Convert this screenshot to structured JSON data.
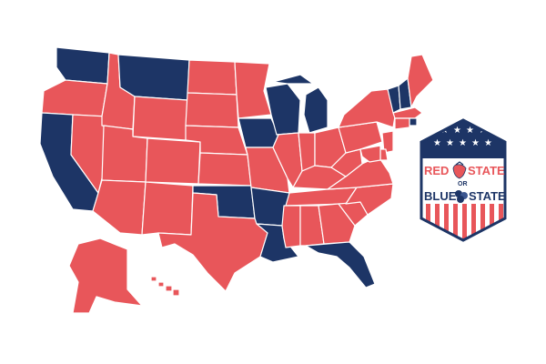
{
  "colors": {
    "red": "#e8565a",
    "blue": "#1d3566",
    "background": "#ffffff"
  },
  "states": [
    {
      "name": "Washington",
      "party": "blue"
    },
    {
      "name": "Oregon",
      "party": "red"
    },
    {
      "name": "California",
      "party": "blue"
    },
    {
      "name": "Nevada",
      "party": "red"
    },
    {
      "name": "Idaho",
      "party": "red"
    },
    {
      "name": "Montana",
      "party": "blue"
    },
    {
      "name": "Wyoming",
      "party": "red"
    },
    {
      "name": "Utah",
      "party": "red"
    },
    {
      "name": "Arizona",
      "party": "red"
    },
    {
      "name": "Colorado",
      "party": "red"
    },
    {
      "name": "New Mexico",
      "party": "red"
    },
    {
      "name": "North Dakota",
      "party": "red"
    },
    {
      "name": "South Dakota",
      "party": "red"
    },
    {
      "name": "Nebraska",
      "party": "red"
    },
    {
      "name": "Kansas",
      "party": "red"
    },
    {
      "name": "Oklahoma",
      "party": "blue"
    },
    {
      "name": "Texas",
      "party": "red"
    },
    {
      "name": "Minnesota",
      "party": "red"
    },
    {
      "name": "Iowa",
      "party": "blue"
    },
    {
      "name": "Missouri",
      "party": "red"
    },
    {
      "name": "Arkansas",
      "party": "blue"
    },
    {
      "name": "Louisiana",
      "party": "blue"
    },
    {
      "name": "Wisconsin",
      "party": "blue"
    },
    {
      "name": "Michigan",
      "party": "blue"
    },
    {
      "name": "Illinois",
      "party": "red"
    },
    {
      "name": "Indiana",
      "party": "red"
    },
    {
      "name": "Ohio",
      "party": "red"
    },
    {
      "name": "Kentucky",
      "party": "red"
    },
    {
      "name": "Tennessee",
      "party": "red"
    },
    {
      "name": "Mississippi",
      "party": "red"
    },
    {
      "name": "Alabama",
      "party": "red"
    },
    {
      "name": "Georgia",
      "party": "red"
    },
    {
      "name": "Florida",
      "party": "blue"
    },
    {
      "name": "South Carolina",
      "party": "red"
    },
    {
      "name": "North Carolina",
      "party": "red"
    },
    {
      "name": "Virginia",
      "party": "red"
    },
    {
      "name": "West Virginia",
      "party": "red"
    },
    {
      "name": "Pennsylvania",
      "party": "red"
    },
    {
      "name": "New York",
      "party": "red"
    },
    {
      "name": "Vermont",
      "party": "blue"
    },
    {
      "name": "New Hampshire",
      "party": "blue"
    },
    {
      "name": "Maine",
      "party": "red"
    },
    {
      "name": "Massachusetts",
      "party": "red"
    },
    {
      "name": "Rhode Island",
      "party": "blue"
    },
    {
      "name": "Connecticut",
      "party": "red"
    },
    {
      "name": "New Jersey",
      "party": "red"
    },
    {
      "name": "Delaware",
      "party": "red"
    },
    {
      "name": "Maryland",
      "party": "red"
    },
    {
      "name": "Alaska",
      "party": "red"
    },
    {
      "name": "Hawaii",
      "party": "red"
    }
  ],
  "badge": {
    "line1_a": "RED",
    "line1_b": "STATE",
    "or": "OR",
    "line2_a": "BLUE",
    "line2_b": "STATE",
    "icon_top": "strawberry-icon",
    "icon_bottom": "blueberry-icon"
  }
}
